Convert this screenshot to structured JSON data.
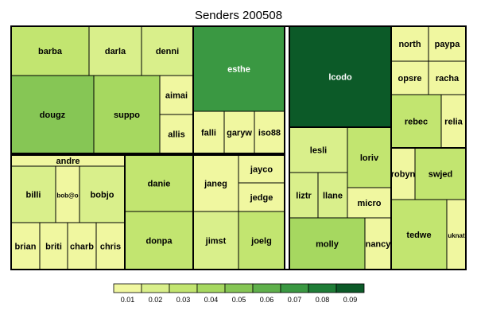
{
  "chart_data": {
    "type": "treemap",
    "title": "Senders 200508",
    "legend": {
      "placement": "bottom",
      "ticks": [
        "0.01",
        "0.02",
        "0.03",
        "0.04",
        "0.05",
        "0.06",
        "0.07",
        "0.08",
        "0.09"
      ],
      "colors": [
        "#f0f7a0",
        "#d9ef8b",
        "#c2e570",
        "#a6d860",
        "#86c655",
        "#5fb04b",
        "#3a9842",
        "#1f7d37",
        "#0c5a28"
      ]
    },
    "cells": [
      {
        "label": "barba",
        "value": 0.025
      },
      {
        "label": "darla",
        "value": 0.02
      },
      {
        "label": "denni",
        "value": 0.022
      },
      {
        "label": "dougz",
        "value": 0.048
      },
      {
        "label": "suppo",
        "value": 0.042
      },
      {
        "label": "aimai",
        "value": 0.01
      },
      {
        "label": "allis",
        "value": 0.01
      },
      {
        "label": "esthe",
        "value": 0.068
      },
      {
        "label": "falli",
        "value": 0.012
      },
      {
        "label": "garyw",
        "value": 0.012
      },
      {
        "label": "iso88",
        "value": 0.012
      },
      {
        "label": "lcodo",
        "value": 0.09
      },
      {
        "label": "north",
        "value": 0.01
      },
      {
        "label": "paypa",
        "value": 0.01
      },
      {
        "label": "opsre",
        "value": 0.01
      },
      {
        "label": "racha",
        "value": 0.01
      },
      {
        "label": "rebec",
        "value": 0.03
      },
      {
        "label": "relia",
        "value": 0.012
      },
      {
        "label": "andre",
        "value": 0.01
      },
      {
        "label": "billi",
        "value": 0.015
      },
      {
        "label": "bob@o",
        "value": 0.012
      },
      {
        "label": "bobjo",
        "value": 0.015
      },
      {
        "label": "brian",
        "value": 0.01
      },
      {
        "label": "briti",
        "value": 0.01
      },
      {
        "label": "charb",
        "value": 0.01
      },
      {
        "label": "chris",
        "value": 0.012
      },
      {
        "label": "danie",
        "value": 0.032
      },
      {
        "label": "donpa",
        "value": 0.034
      },
      {
        "label": "janeg",
        "value": 0.012
      },
      {
        "label": "jayco",
        "value": 0.01
      },
      {
        "label": "jedge",
        "value": 0.01
      },
      {
        "label": "jimst",
        "value": 0.022
      },
      {
        "label": "joelg",
        "value": 0.03
      },
      {
        "label": "lesli",
        "value": 0.022
      },
      {
        "label": "loriv",
        "value": 0.025
      },
      {
        "label": "liztr",
        "value": 0.018
      },
      {
        "label": "llane",
        "value": 0.016
      },
      {
        "label": "micro",
        "value": 0.012
      },
      {
        "label": "molly",
        "value": 0.038
      },
      {
        "label": "nancy",
        "value": 0.012
      },
      {
        "label": "robyn",
        "value": 0.01
      },
      {
        "label": "swjed",
        "value": 0.025
      },
      {
        "label": "tedwe",
        "value": 0.034
      },
      {
        "label": "uknat",
        "value": 0.012
      }
    ]
  }
}
